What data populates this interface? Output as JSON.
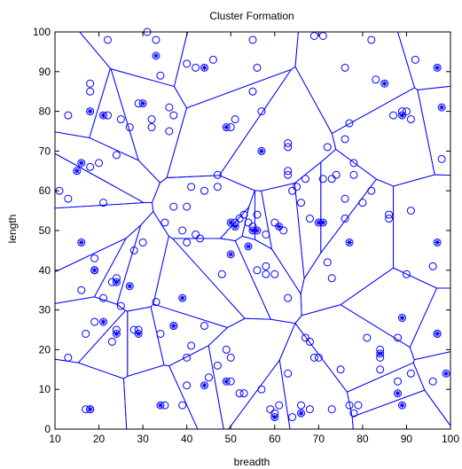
{
  "chart_data": {
    "type": "scatter",
    "title": "Cluster Formation",
    "xlabel": "breadth",
    "ylabel": "length",
    "xlim": [
      10,
      100
    ],
    "ylim": [
      0,
      100
    ],
    "xticks": [
      10,
      20,
      30,
      40,
      50,
      60,
      70,
      80,
      90,
      100
    ],
    "yticks": [
      0,
      10,
      20,
      30,
      40,
      50,
      60,
      70,
      80,
      90,
      100
    ],
    "grid": false,
    "colors": {
      "marker": "#0000ff",
      "edge": "#0000ff",
      "axis": "#000000"
    },
    "series": [
      {
        "marker": "circle",
        "points": [
          [
            22,
            98
          ],
          [
            31,
            100
          ],
          [
            33,
            98
          ],
          [
            34,
            89
          ],
          [
            40,
            92
          ],
          [
            42,
            91
          ],
          [
            46,
            93
          ],
          [
            55,
            98
          ],
          [
            56,
            91
          ],
          [
            55,
            85
          ],
          [
            69,
            99
          ],
          [
            71,
            99
          ],
          [
            76,
            91
          ],
          [
            82,
            98
          ],
          [
            83,
            88
          ],
          [
            90,
            80
          ],
          [
            92,
            93
          ],
          [
            13,
            79
          ],
          [
            18,
            87
          ],
          [
            18,
            85
          ],
          [
            22,
            79
          ],
          [
            25,
            78
          ],
          [
            27,
            76
          ],
          [
            29,
            82
          ],
          [
            32,
            78
          ],
          [
            32,
            76
          ],
          [
            36,
            81
          ],
          [
            37,
            79
          ],
          [
            36,
            75
          ],
          [
            51,
            78
          ],
          [
            50,
            76
          ],
          [
            57,
            80
          ],
          [
            63,
            72
          ],
          [
            63,
            71
          ],
          [
            72,
            71
          ],
          [
            76,
            73
          ],
          [
            77,
            77
          ],
          [
            87,
            79
          ],
          [
            89,
            80
          ],
          [
            91,
            78
          ],
          [
            98,
            68
          ],
          [
            11,
            60
          ],
          [
            13,
            58
          ],
          [
            18,
            66
          ],
          [
            20,
            67
          ],
          [
            21,
            57
          ],
          [
            24,
            69
          ],
          [
            37,
            56
          ],
          [
            39,
            50
          ],
          [
            40,
            56
          ],
          [
            41,
            61
          ],
          [
            44,
            60
          ],
          [
            47,
            64
          ],
          [
            47,
            61
          ],
          [
            51,
            52
          ],
          [
            52,
            53
          ],
          [
            53,
            54
          ],
          [
            54,
            52
          ],
          [
            55,
            51
          ],
          [
            56,
            54
          ],
          [
            58,
            49
          ],
          [
            60,
            52
          ],
          [
            62,
            50
          ],
          [
            63,
            65
          ],
          [
            63,
            64
          ],
          [
            64,
            60
          ],
          [
            65,
            61
          ],
          [
            66,
            57
          ],
          [
            67,
            63
          ],
          [
            71,
            63
          ],
          [
            73,
            63
          ],
          [
            74,
            64
          ],
          [
            76,
            58
          ],
          [
            76,
            53
          ],
          [
            78,
            64
          ],
          [
            78,
            67
          ],
          [
            80,
            57
          ],
          [
            82,
            60
          ],
          [
            86,
            54
          ],
          [
            86,
            53
          ],
          [
            91,
            55
          ],
          [
            16,
            35
          ],
          [
            19,
            40
          ],
          [
            19,
            43
          ],
          [
            21,
            33
          ],
          [
            23,
            37
          ],
          [
            24,
            38
          ],
          [
            25,
            31
          ],
          [
            28,
            45
          ],
          [
            30,
            47
          ],
          [
            33,
            32
          ],
          [
            35,
            52
          ],
          [
            40,
            47
          ],
          [
            42,
            49
          ],
          [
            43,
            48
          ],
          [
            48,
            39
          ],
          [
            56,
            40
          ],
          [
            58,
            41
          ],
          [
            58,
            39
          ],
          [
            60,
            39
          ],
          [
            63,
            33
          ],
          [
            68,
            53
          ],
          [
            72,
            42
          ],
          [
            73,
            38
          ],
          [
            90,
            39
          ],
          [
            96,
            41
          ],
          [
            17,
            24
          ],
          [
            19,
            27
          ],
          [
            23,
            22
          ],
          [
            24,
            25
          ],
          [
            28,
            25
          ],
          [
            29,
            25
          ],
          [
            34,
            24
          ],
          [
            40,
            18
          ],
          [
            41,
            21
          ],
          [
            37,
            26
          ],
          [
            44,
            26
          ],
          [
            47,
            16
          ],
          [
            49,
            20
          ],
          [
            50,
            18
          ],
          [
            52,
            9
          ],
          [
            53,
            9
          ],
          [
            57,
            10
          ],
          [
            60,
            4
          ],
          [
            61,
            6
          ],
          [
            63,
            14
          ],
          [
            64,
            3
          ],
          [
            67,
            23
          ],
          [
            68,
            22
          ],
          [
            69,
            18
          ],
          [
            70,
            18
          ],
          [
            75,
            15
          ],
          [
            77,
            6
          ],
          [
            78,
            4
          ],
          [
            79,
            6
          ],
          [
            81,
            23
          ],
          [
            84,
            20
          ],
          [
            84,
            15
          ],
          [
            84,
            18
          ],
          [
            88,
            23
          ],
          [
            88,
            12
          ],
          [
            91,
            14
          ],
          [
            96,
            12
          ],
          [
            97,
            24
          ],
          [
            13,
            18
          ],
          [
            17,
            5
          ],
          [
            18,
            5
          ],
          [
            35,
            6
          ],
          [
            39,
            6
          ],
          [
            40,
            11
          ],
          [
            45,
            13
          ],
          [
            50,
            12
          ],
          [
            59,
            5
          ],
          [
            66,
            6
          ],
          [
            68,
            5
          ],
          [
            73,
            5
          ]
        ]
      },
      {
        "marker": "circle-star",
        "points": [
          [
            33,
            94
          ],
          [
            44,
            91
          ],
          [
            97,
            91
          ],
          [
            85,
            87
          ],
          [
            21,
            79
          ],
          [
            18,
            80
          ],
          [
            30,
            82
          ],
          [
            49,
            76
          ],
          [
            57,
            70
          ],
          [
            89,
            79
          ],
          [
            98,
            81
          ],
          [
            15,
            65
          ],
          [
            16,
            67
          ],
          [
            50,
            52
          ],
          [
            51,
            51
          ],
          [
            55,
            50
          ],
          [
            56,
            50
          ],
          [
            61,
            51
          ],
          [
            70,
            52
          ],
          [
            71,
            52
          ],
          [
            77,
            47
          ],
          [
            97,
            47
          ],
          [
            54,
            46
          ],
          [
            16,
            47
          ],
          [
            19,
            40
          ],
          [
            24,
            37
          ],
          [
            27,
            36
          ],
          [
            39,
            33
          ],
          [
            50,
            44
          ],
          [
            21,
            27
          ],
          [
            24,
            24
          ],
          [
            29,
            24
          ],
          [
            37,
            26
          ],
          [
            44,
            11
          ],
          [
            49,
            12
          ],
          [
            84,
            19
          ],
          [
            89,
            28
          ],
          [
            97,
            24
          ],
          [
            88,
            9
          ],
          [
            89,
            6
          ],
          [
            99,
            14
          ],
          [
            18,
            5
          ],
          [
            34,
            6
          ],
          [
            60,
            3
          ],
          [
            66,
            4
          ]
        ]
      }
    ]
  }
}
